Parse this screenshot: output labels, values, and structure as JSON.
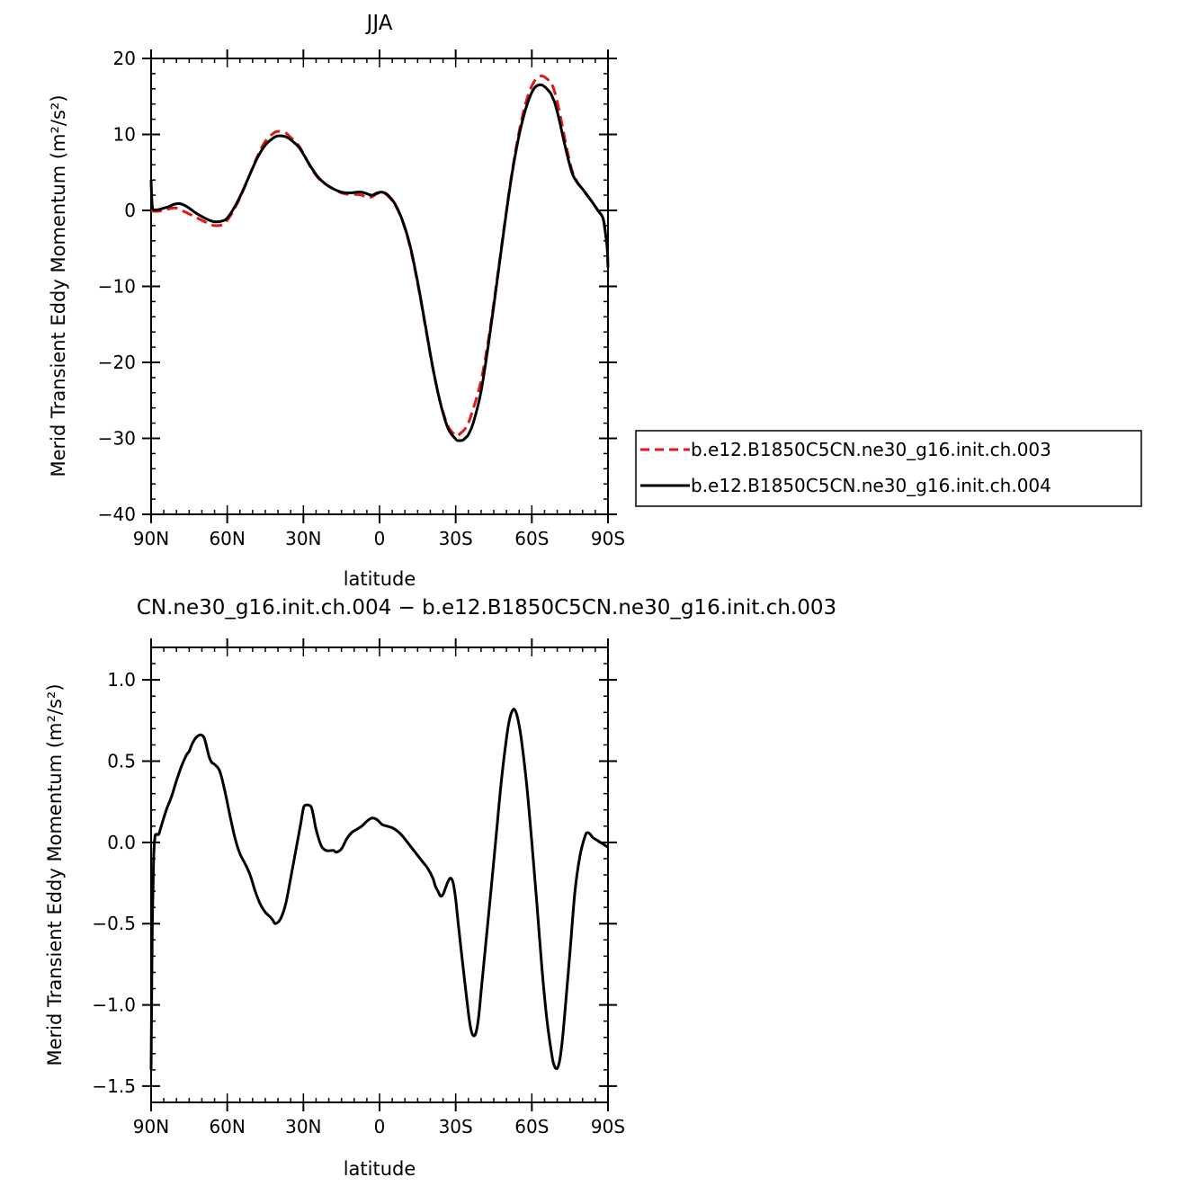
{
  "chart_data": [
    {
      "type": "line",
      "title": "JJA",
      "xlabel": "latitude",
      "ylabel": "Merid Transient Eddy Momentum (m²/s²)",
      "xlim": [
        90,
        -90
      ],
      "ylim": [
        -40,
        20
      ],
      "x_ticks": [
        {
          "value": 90,
          "label": "90N"
        },
        {
          "value": 60,
          "label": "60N"
        },
        {
          "value": 30,
          "label": "30N"
        },
        {
          "value": 0,
          "label": "0"
        },
        {
          "value": -30,
          "label": "30S"
        },
        {
          "value": -60,
          "label": "60S"
        },
        {
          "value": -90,
          "label": "90S"
        }
      ],
      "y_ticks": [
        {
          "value": 20,
          "label": "20"
        },
        {
          "value": 10,
          "label": "10"
        },
        {
          "value": 0,
          "label": "0"
        },
        {
          "value": -10,
          "label": "−10"
        },
        {
          "value": -20,
          "label": "−20"
        },
        {
          "value": -30,
          "label": "−30"
        },
        {
          "value": -40,
          "label": "−40"
        }
      ],
      "legend_position": "right",
      "series": [
        {
          "name": "b.e12.B1850C5CN.ne30_g16.init.ch.003",
          "color": "#e01818",
          "style": "dashed",
          "x": [
            90,
            89,
            87,
            84,
            82,
            80,
            78,
            76,
            73,
            70,
            67,
            65,
            62,
            60,
            57,
            54,
            51,
            48,
            45,
            42,
            40,
            37,
            35,
            32,
            30,
            27,
            24,
            21,
            18,
            15,
            12,
            9,
            7,
            5,
            3,
            1,
            -1,
            -3,
            -6,
            -9,
            -12,
            -15,
            -18,
            -21,
            -24,
            -27,
            -30,
            -31,
            -32,
            -33,
            -34,
            -35,
            -37,
            -40,
            -43,
            -46,
            -49,
            -52,
            -55,
            -58,
            -61,
            -64,
            -67,
            -68,
            -69,
            -70,
            -71,
            -72,
            -74,
            -76,
            -78,
            -80,
            -82,
            -84,
            -86,
            -88,
            -89,
            -89.7,
            -90
          ],
          "values": [
            0.0,
            -0.1,
            -0.1,
            0.1,
            0.3,
            0.3,
            0.0,
            -0.3,
            -0.8,
            -1.3,
            -1.8,
            -2.0,
            -1.9,
            -1.3,
            0.3,
            2.4,
            4.8,
            7.2,
            9.1,
            10.1,
            10.4,
            10.2,
            9.6,
            8.6,
            7.5,
            5.6,
            4.2,
            3.4,
            2.8,
            2.3,
            2.1,
            2.1,
            2.0,
            1.7,
            1.8,
            2.2,
            2.3,
            2.0,
            0.8,
            -1.4,
            -4.8,
            -9.6,
            -15.2,
            -20.8,
            -25.3,
            -28.4,
            -29.6,
            -29.6,
            -29.3,
            -29.0,
            -28.6,
            -28.0,
            -26.0,
            -22.4,
            -16.8,
            -9.8,
            -2.4,
            4.6,
            10.4,
            14.6,
            17.0,
            17.7,
            17.0,
            16.5,
            15.6,
            14.3,
            12.8,
            11.1,
            7.8,
            5.1,
            3.7,
            2.8,
            1.9,
            1.0,
            0.0,
            -1.0,
            -3.0,
            -5.0,
            -7.5
          ]
        },
        {
          "name": "b.e12.B1850C5CN.ne30_g16.init.ch.004",
          "color": "#000000",
          "style": "solid",
          "x": [
            90,
            89.8,
            89.5,
            89,
            87,
            85,
            83,
            81,
            79,
            77,
            75,
            73,
            70,
            67,
            65,
            62,
            60,
            57,
            54,
            51,
            48,
            45,
            42,
            40,
            37,
            35,
            32,
            30,
            27,
            24,
            21,
            18,
            15,
            12,
            9,
            7,
            5,
            3,
            1,
            -1,
            -3,
            -6,
            -9,
            -12,
            -15,
            -18,
            -21,
            -24,
            -27,
            -30,
            -31,
            -32,
            -33,
            -34,
            -35,
            -37,
            -40,
            -43,
            -46,
            -49,
            -52,
            -55,
            -58,
            -61,
            -64,
            -67,
            -68,
            -69,
            -70,
            -71,
            -72,
            -74,
            -76,
            -78,
            -80,
            -82,
            -84,
            -86,
            -88,
            -89,
            -89.7,
            -90
          ],
          "values": [
            4.0,
            2.0,
            0.5,
            0.1,
            0.1,
            0.3,
            0.5,
            0.8,
            0.9,
            0.7,
            0.3,
            -0.2,
            -0.8,
            -1.3,
            -1.5,
            -1.4,
            -1.0,
            0.5,
            2.5,
            4.8,
            7.0,
            8.6,
            9.5,
            9.8,
            9.7,
            9.3,
            8.4,
            7.4,
            5.7,
            4.3,
            3.4,
            2.8,
            2.4,
            2.3,
            2.4,
            2.4,
            2.2,
            2.0,
            2.3,
            2.4,
            2.1,
            0.9,
            -1.3,
            -4.6,
            -9.4,
            -15.0,
            -20.7,
            -25.4,
            -28.7,
            -30.1,
            -30.3,
            -30.3,
            -30.2,
            -29.9,
            -29.5,
            -27.9,
            -23.8,
            -17.4,
            -10.1,
            -2.6,
            4.4,
            9.9,
            13.8,
            16.1,
            16.5,
            15.6,
            15.0,
            14.2,
            13.0,
            11.6,
            10.1,
            7.2,
            4.8,
            3.6,
            2.8,
            1.9,
            1.0,
            0.0,
            -1.0,
            -3.0,
            -5.0,
            -7.5
          ]
        }
      ]
    },
    {
      "type": "line",
      "title": "CN.ne30_g16.init.ch.004 − b.e12.B1850C5CN.ne30_g16.init.ch.003",
      "xlabel": "latitude",
      "ylabel": "Merid Transient Eddy Momentum (m²/s²)",
      "xlim": [
        90,
        -90
      ],
      "ylim": [
        -1.6,
        1.2
      ],
      "x_ticks": [
        {
          "value": 90,
          "label": "90N"
        },
        {
          "value": 60,
          "label": "60N"
        },
        {
          "value": 30,
          "label": "30N"
        },
        {
          "value": 0,
          "label": "0"
        },
        {
          "value": -30,
          "label": "30S"
        },
        {
          "value": -60,
          "label": "60S"
        },
        {
          "value": -90,
          "label": "90S"
        }
      ],
      "y_ticks": [
        {
          "value": 1.0,
          "label": "1.0"
        },
        {
          "value": 0.5,
          "label": "0.5"
        },
        {
          "value": 0.0,
          "label": "0.0"
        },
        {
          "value": -0.5,
          "label": "−0.5"
        },
        {
          "value": -1.0,
          "label": "−1.0"
        },
        {
          "value": -1.5,
          "label": "−1.5"
        }
      ],
      "series": [
        {
          "color": "#000000",
          "style": "solid",
          "x": [
            90,
            89.8,
            89.5,
            89,
            88.5,
            88,
            87,
            86,
            84,
            82,
            80,
            78,
            76,
            75,
            74,
            73,
            72,
            71,
            70,
            69,
            68,
            67,
            66,
            65,
            63,
            61,
            59,
            57,
            55,
            53,
            51,
            49,
            47,
            45,
            43,
            42,
            41,
            39,
            37,
            35,
            33,
            31,
            30,
            29,
            27,
            26,
            25,
            23,
            21,
            19,
            18,
            17,
            15,
            13,
            11,
            9,
            7,
            5,
            3,
            1,
            -1,
            -3,
            -5,
            -7,
            -9,
            -11,
            -13,
            -15,
            -17,
            -19,
            -21,
            -22,
            -23,
            -24,
            -25,
            -26,
            -27,
            -28,
            -29,
            -30,
            -31,
            -33,
            -35,
            -36,
            -37,
            -38,
            -39,
            -40,
            -42,
            -44,
            -46,
            -48,
            -50,
            -51,
            -52,
            -53,
            -54,
            -55,
            -56,
            -58,
            -60,
            -62,
            -64,
            -66,
            -68,
            -69,
            -70,
            -71,
            -72,
            -73,
            -75,
            -77,
            -79,
            -81,
            -82,
            -83,
            -84,
            -85,
            -86,
            -87,
            -88,
            -89,
            -90
          ],
          "values": [
            -1.4,
            -1.0,
            -0.5,
            -0.1,
            0.03,
            0.05,
            0.05,
            0.1,
            0.2,
            0.28,
            0.38,
            0.47,
            0.54,
            0.56,
            0.6,
            0.63,
            0.65,
            0.66,
            0.66,
            0.64,
            0.58,
            0.52,
            0.49,
            0.48,
            0.44,
            0.32,
            0.17,
            0.03,
            -0.07,
            -0.13,
            -0.2,
            -0.3,
            -0.38,
            -0.43,
            -0.46,
            -0.48,
            -0.5,
            -0.47,
            -0.38,
            -0.22,
            -0.05,
            0.12,
            0.21,
            0.23,
            0.22,
            0.16,
            0.08,
            -0.02,
            -0.05,
            -0.05,
            -0.05,
            -0.06,
            -0.04,
            0.02,
            0.06,
            0.08,
            0.1,
            0.13,
            0.15,
            0.14,
            0.11,
            0.1,
            0.09,
            0.07,
            0.04,
            0.0,
            -0.04,
            -0.08,
            -0.12,
            -0.16,
            -0.22,
            -0.27,
            -0.3,
            -0.33,
            -0.32,
            -0.28,
            -0.24,
            -0.22,
            -0.25,
            -0.35,
            -0.5,
            -0.78,
            -1.05,
            -1.15,
            -1.19,
            -1.17,
            -1.08,
            -0.92,
            -0.6,
            -0.28,
            0.05,
            0.38,
            0.64,
            0.74,
            0.8,
            0.82,
            0.79,
            0.72,
            0.62,
            0.35,
            0.0,
            -0.38,
            -0.78,
            -1.1,
            -1.32,
            -1.38,
            -1.39,
            -1.34,
            -1.22,
            -1.05,
            -0.68,
            -0.3,
            -0.08,
            0.04,
            0.06,
            0.05,
            0.03,
            0.02,
            0.01,
            0.0,
            -0.01,
            -0.02,
            -0.03
          ]
        }
      ]
    }
  ]
}
